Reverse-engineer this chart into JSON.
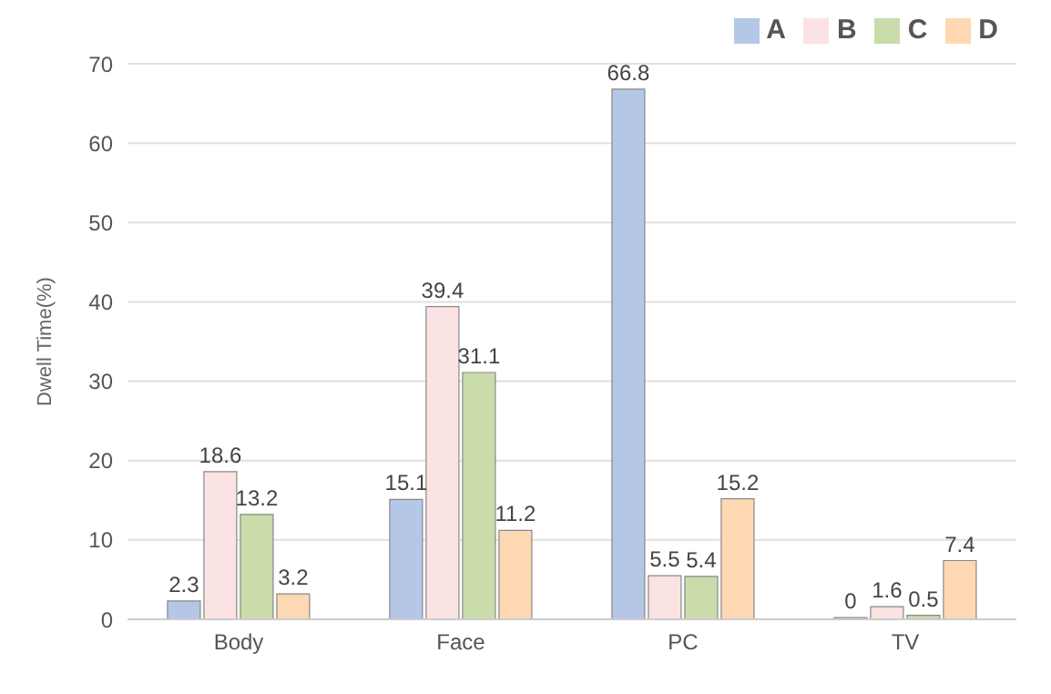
{
  "chart_data": {
    "type": "bar",
    "ylabel": "Dwell Time(%)",
    "categories": [
      "Body",
      "Face",
      "PC",
      "TV"
    ],
    "series": [
      {
        "name": "A",
        "color": "#b4c7e7",
        "values": [
          2.3,
          15.1,
          66.8,
          0
        ]
      },
      {
        "name": "B",
        "color": "#fbe3e4",
        "values": [
          18.6,
          39.4,
          5.5,
          1.6
        ]
      },
      {
        "name": "C",
        "color": "#c9dcaa",
        "values": [
          13.2,
          31.1,
          5.4,
          0.5
        ]
      },
      {
        "name": "D",
        "color": "#fdd8b3",
        "values": [
          3.2,
          11.2,
          15.2,
          7.4
        ]
      }
    ],
    "ylim": [
      0,
      70
    ],
    "yticks": [
      0,
      10,
      20,
      30,
      40,
      50,
      60,
      70
    ],
    "grid": "y",
    "legend": "top right",
    "data_labels": true
  }
}
